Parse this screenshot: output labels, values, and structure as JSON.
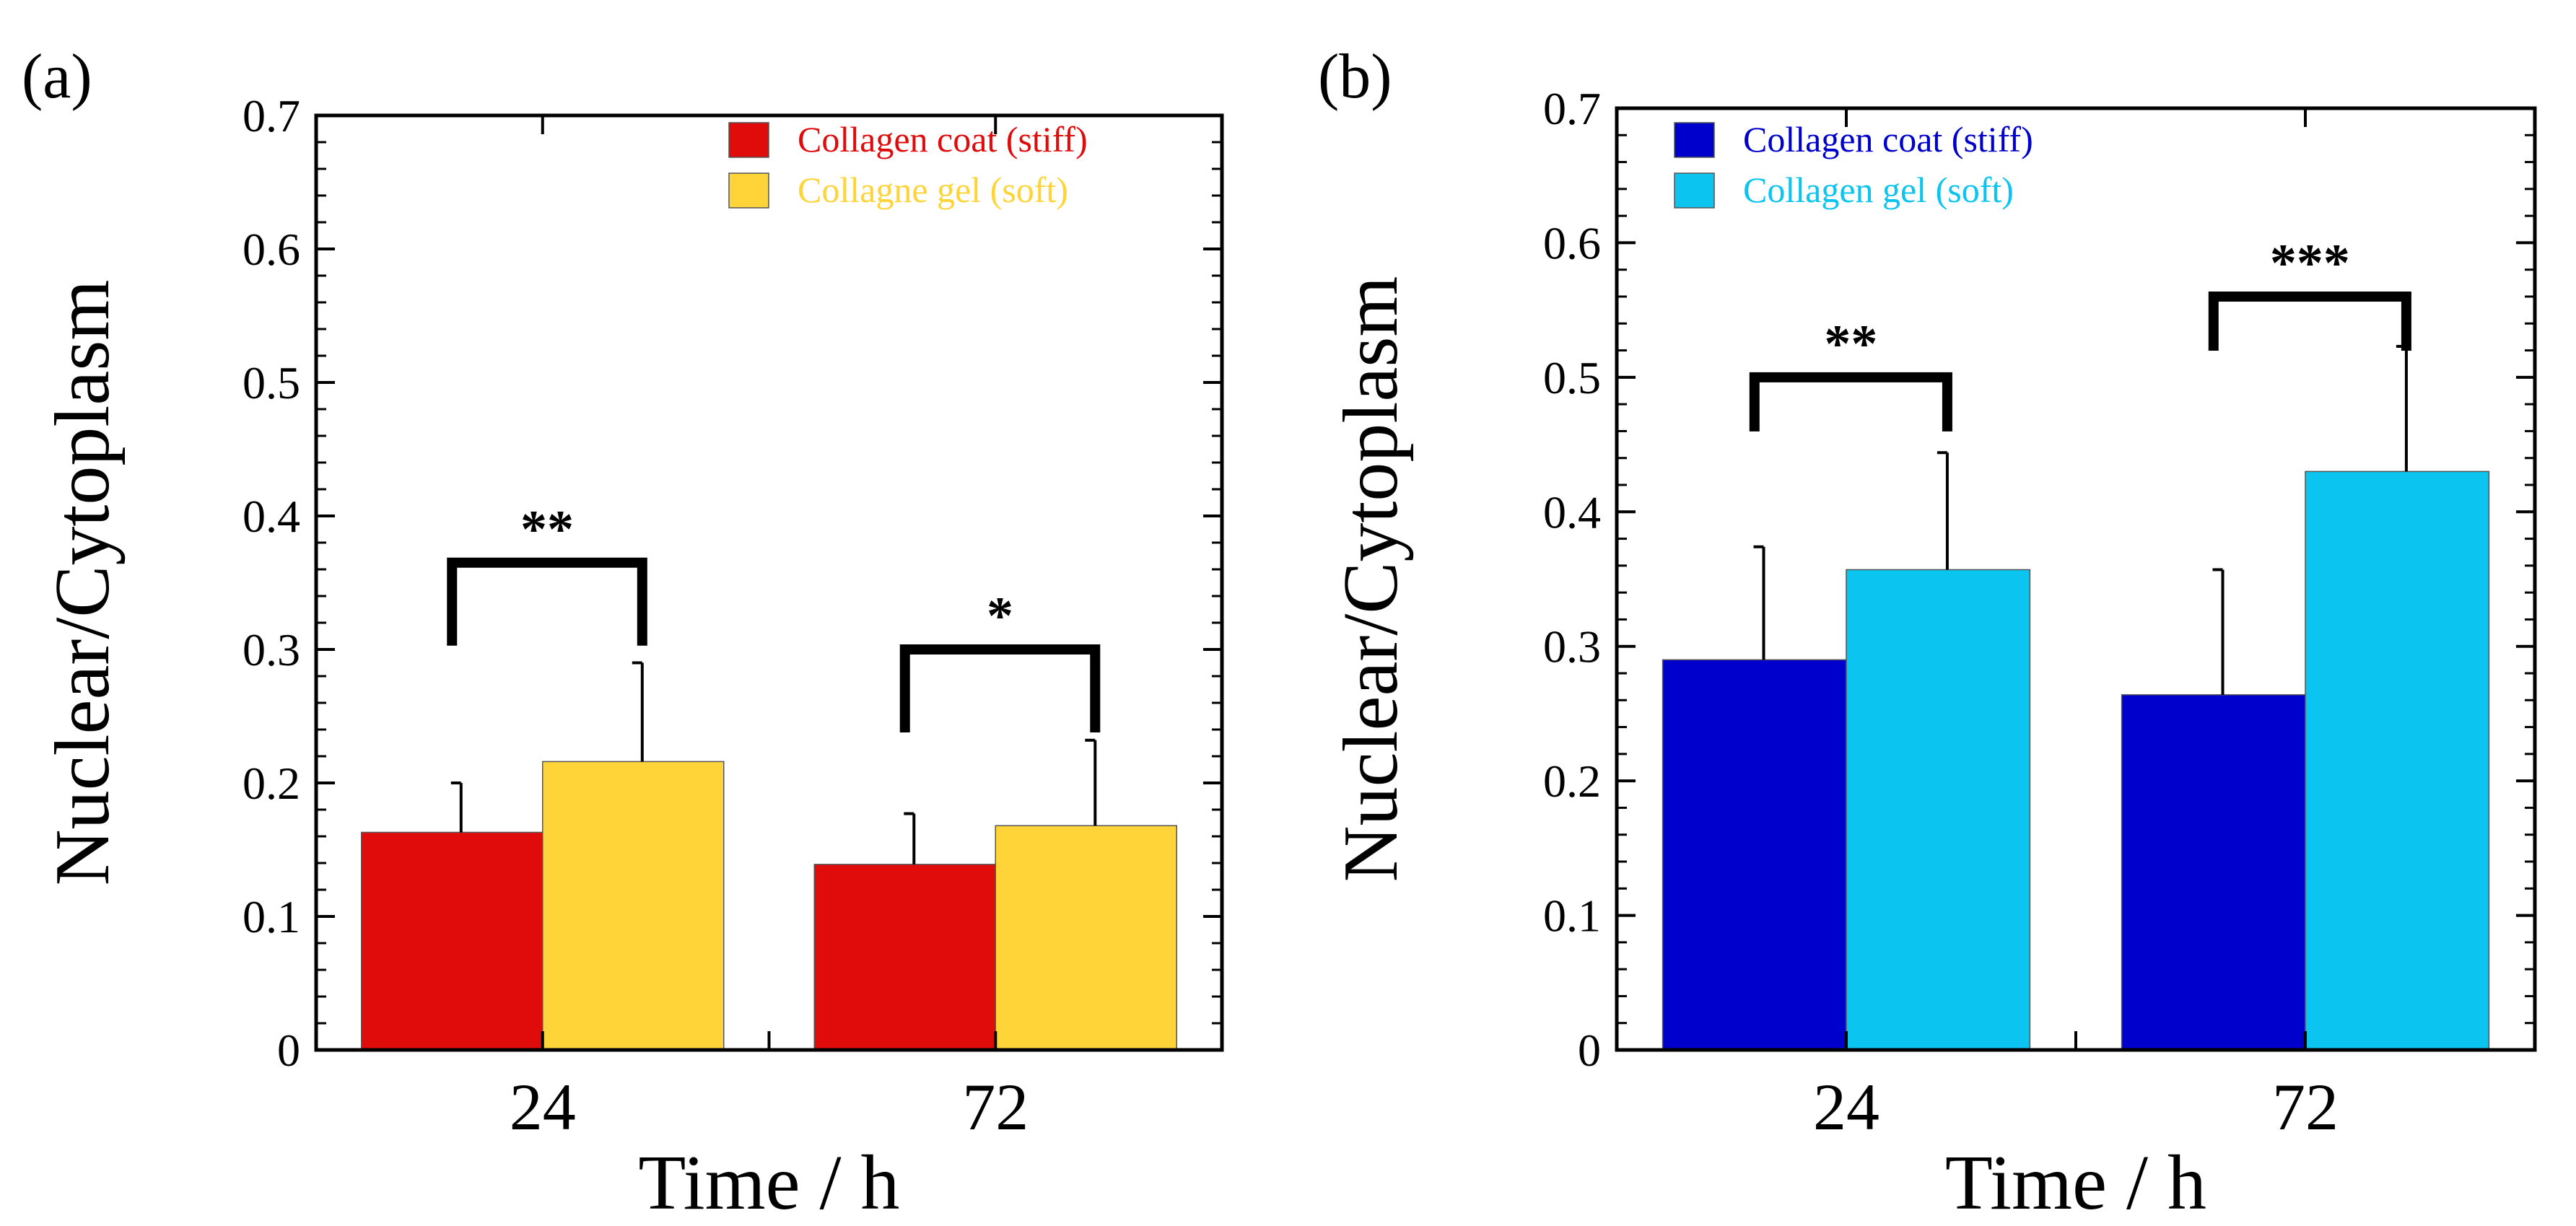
{
  "colors": {
    "stiff_a": "#e00b0b",
    "soft_a": "#ffd438",
    "stiff_b": "#0000cc",
    "soft_b": "#0bc4ef",
    "axis": "#000000"
  },
  "chart_data": [
    {
      "type": "bar",
      "panel_label": "(a)",
      "categories": [
        "24",
        "72"
      ],
      "xlabel": "Time / h",
      "ylabel": "Nuclear/Cytoplasm",
      "ylim": [
        0,
        0.7
      ],
      "yticks": [
        0,
        0.1,
        0.2,
        0.3,
        0.4,
        0.5,
        0.6,
        0.7
      ],
      "ytick_labels": [
        "0",
        "0.1",
        "0.2",
        "0.3",
        "0.4",
        "0.5",
        "0.6",
        "0.7"
      ],
      "legend_position": "top-right",
      "series": [
        {
          "name": "Collagen coat (stiff)",
          "color": "#e00b0b",
          "values": [
            0.163,
            0.139
          ],
          "errors": [
            0.037,
            0.038
          ]
        },
        {
          "name": "Collagne gel (soft)",
          "color": "#ffd438",
          "values": [
            0.216,
            0.168
          ],
          "errors": [
            0.074,
            0.064
          ]
        }
      ],
      "significance": [
        {
          "category": "24",
          "text": "**",
          "level": 0.365
        },
        {
          "category": "72",
          "text": "*",
          "level": 0.3
        }
      ]
    },
    {
      "type": "bar",
      "panel_label": "(b)",
      "categories": [
        "24",
        "72"
      ],
      "xlabel": "Time / h",
      "ylabel": "Nuclear/Cytoplasm",
      "ylim": [
        0,
        0.7
      ],
      "yticks": [
        0,
        0.1,
        0.2,
        0.3,
        0.4,
        0.5,
        0.6,
        0.7
      ],
      "ytick_labels": [
        "0",
        "0.1",
        "0.2",
        "0.3",
        "0.4",
        "0.5",
        "0.6",
        "0.7"
      ],
      "legend_position": "top-left",
      "series": [
        {
          "name": "Collagen coat (stiff)",
          "color": "#0000cc",
          "values": [
            0.29,
            0.264
          ],
          "errors": [
            0.084,
            0.093
          ]
        },
        {
          "name": "Collagen gel (soft)",
          "color": "#0bc4ef",
          "values": [
            0.357,
            0.43
          ],
          "errors": [
            0.087,
            0.093
          ]
        }
      ],
      "significance": [
        {
          "category": "24",
          "text": "**",
          "level": 0.5
        },
        {
          "category": "72",
          "text": "***",
          "level": 0.56
        }
      ]
    }
  ]
}
